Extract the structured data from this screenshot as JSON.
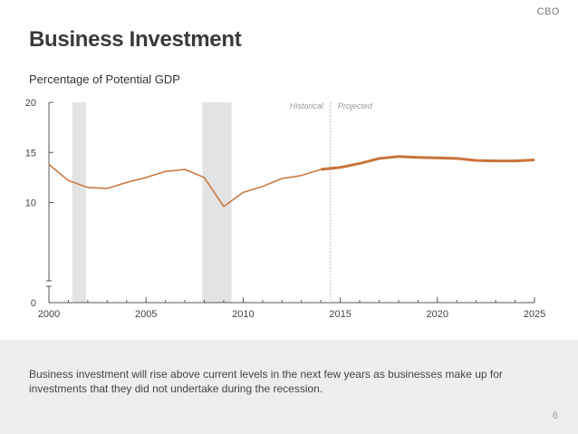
{
  "header": {
    "brand": "CBO"
  },
  "title": "Business Investment",
  "footer": {
    "text": "Business investment will rise above current levels in the next few years as businesses make up for investments that they did not undertake during the recession.",
    "page_number": "6"
  },
  "chart_data": {
    "type": "line",
    "title": "Business Investment",
    "ylabel": "Percentage of Potential GDP",
    "xlabel": "",
    "xlim": [
      2000,
      2025
    ],
    "ylim": [
      0,
      20
    ],
    "x_ticks": [
      2000,
      2005,
      2010,
      2015,
      2020,
      2025
    ],
    "y_ticks": [
      0,
      10,
      15,
      20
    ],
    "y_axis_break": true,
    "region_labels": {
      "historical": "Historical",
      "projected": "Projected"
    },
    "divider_x": 2014.5,
    "recessions": [
      {
        "start": 2001.2,
        "end": 2001.9
      },
      {
        "start": 2007.9,
        "end": 2009.4
      }
    ],
    "series": [
      {
        "color": "#c8743a",
        "x": [
          2000,
          2001,
          2002,
          2003,
          2004,
          2005,
          2006,
          2007,
          2008,
          2009,
          2010,
          2011,
          2012,
          2013,
          2014,
          2015,
          2016,
          2017,
          2018,
          2019,
          2020,
          2021,
          2022,
          2023,
          2024,
          2025
        ],
        "y": [
          13.8,
          12.2,
          11.5,
          11.4,
          12.0,
          12.5,
          13.1,
          13.3,
          12.5,
          9.6,
          11.0,
          11.6,
          12.4,
          12.7,
          13.3,
          13.5,
          13.9,
          14.4,
          14.6,
          14.5,
          14.45,
          14.4,
          14.2,
          14.15,
          14.15,
          14.25
        ]
      }
    ]
  }
}
